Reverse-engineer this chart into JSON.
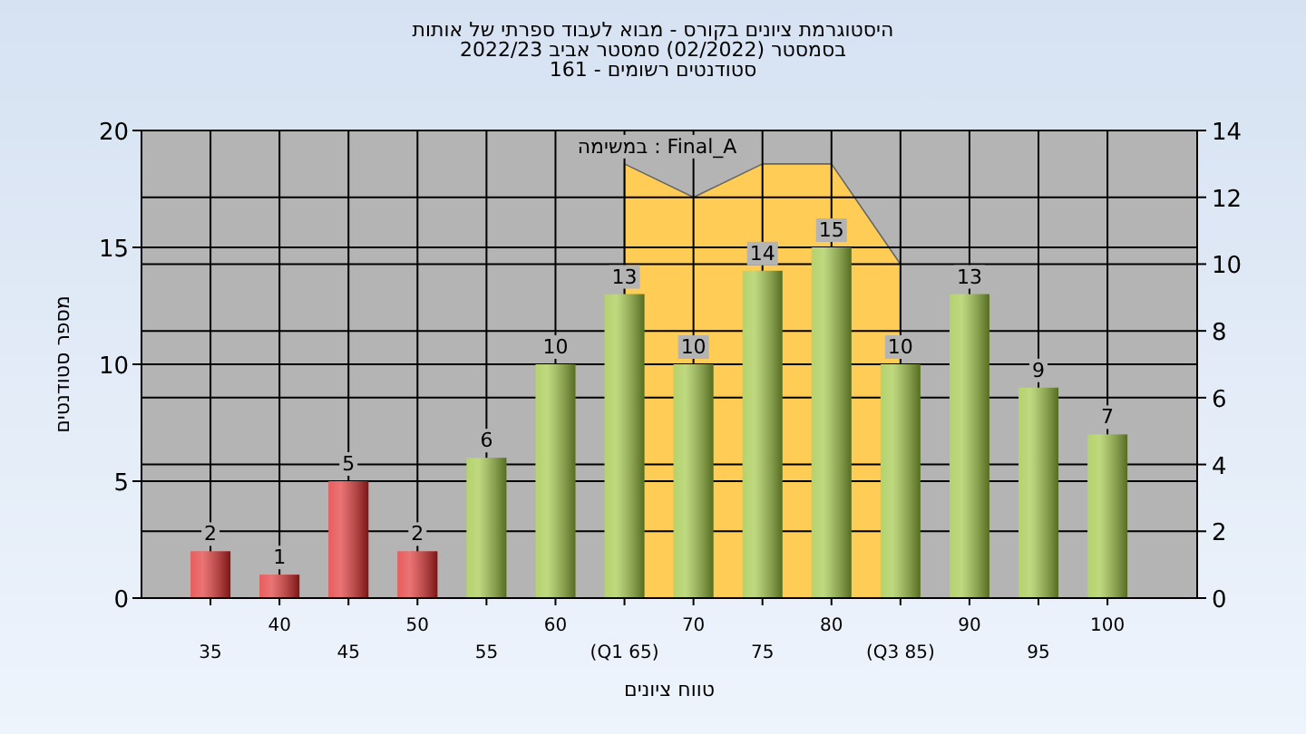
{
  "chart_data": {
    "type": "bar",
    "title": "היסטוגרמת ציונים בקורס - מבוא לעבוד ספרתי של אותות",
    "subtitle": "בסמסטר  (02/2022)  סמסטר אביב 2022/23",
    "annotations": [
      "סטודנטים רשומים - 161"
    ],
    "xlabel": "טווח ציונים",
    "ylabel": "מספר סטודנטים",
    "categories": [
      "35",
      "40",
      "45",
      "50",
      "55",
      "60",
      "(Q1 65)",
      "70",
      "75",
      "80",
      "(Q3 85)",
      "90",
      "95",
      "100"
    ],
    "values": [
      2,
      1,
      5,
      2,
      6,
      10,
      13,
      10,
      14,
      15,
      10,
      13,
      9,
      7
    ],
    "colors": [
      "#e02828",
      "#e02828",
      "#e02828",
      "#e02828",
      "#9cc43c",
      "#9cc43c",
      "#9cc43c",
      "#9cc43c",
      "#9cc43c",
      "#9cc43c",
      "#9cc43c",
      "#9cc43c",
      "#9cc43c",
      "#9cc43c"
    ],
    "series": [
      {
        "name": "במשימה : Final_A",
        "type": "area",
        "axis": "y2",
        "color": "#ffcc55",
        "x": [
          "(Q1 65)",
          "70",
          "75",
          "80",
          "(Q3 85)"
        ],
        "values": [
          13,
          12,
          13,
          13,
          10
        ]
      }
    ],
    "ylim": [
      0,
      20
    ],
    "yticks": [
      0,
      5,
      10,
      15,
      20
    ],
    "y2lim": [
      0,
      14
    ],
    "y2ticks": [
      0,
      2,
      4,
      6,
      8,
      10,
      12,
      14
    ],
    "value_labels": [
      "2",
      "1",
      "5",
      "2",
      "6",
      "10",
      "13",
      "10",
      "14",
      "15",
      "10",
      "13",
      "9",
      "7"
    ],
    "grid": true
  }
}
